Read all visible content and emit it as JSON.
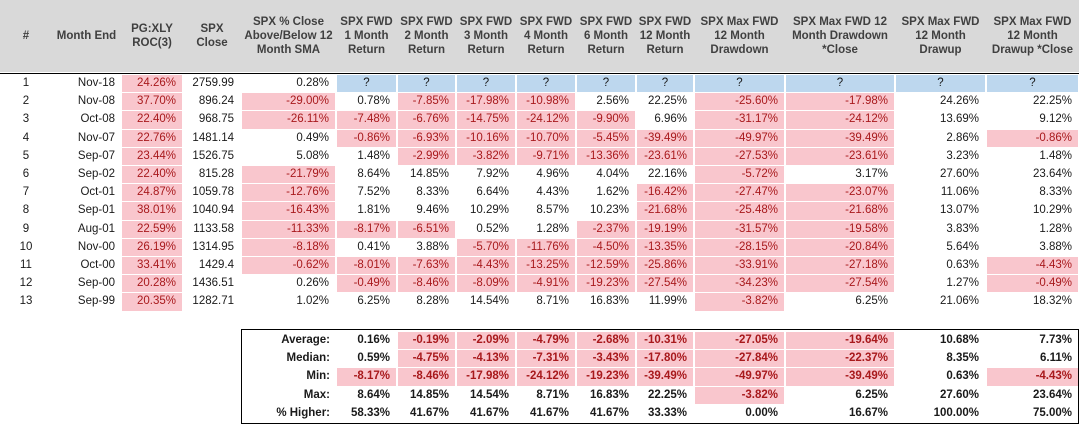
{
  "headers": [
    "#",
    "Month End",
    "PG:XLY ROC(3)",
    "SPX Close",
    "SPX % Close Above/Below 12 Month SMA",
    "SPX FWD 1 Month Return",
    "SPX FWD 2 Month Return",
    "SPX FWD 3 Month Return",
    "SPX FWD 4 Month Return",
    "SPX FWD 6 Month Return",
    "SPX FWD 12 Month Return",
    "SPX Max FWD 12 Month Drawdown",
    "SPX Max FWD 12 Month Drawdown *Close",
    "SPX Max FWD 12 Month Drawup",
    "SPX Max FWD 12 Month Drawup *Close"
  ],
  "rows": [
    [
      "1",
      "Nov-18",
      "24.26%",
      "2759.99",
      "0.28%",
      "?",
      "?",
      "?",
      "?",
      "?",
      "?",
      "?",
      "?",
      "?",
      "?"
    ],
    [
      "2",
      "Nov-08",
      "37.70%",
      "896.24",
      "-29.00%",
      "0.78%",
      "-7.85%",
      "-17.98%",
      "-10.98%",
      "2.56%",
      "22.25%",
      "-25.60%",
      "-17.98%",
      "24.26%",
      "22.25%"
    ],
    [
      "3",
      "Oct-08",
      "22.40%",
      "968.75",
      "-26.11%",
      "-7.48%",
      "-6.76%",
      "-14.75%",
      "-24.12%",
      "-9.90%",
      "6.96%",
      "-31.17%",
      "-24.12%",
      "13.69%",
      "9.12%"
    ],
    [
      "4",
      "Nov-07",
      "22.76%",
      "1481.14",
      "0.49%",
      "-0.86%",
      "-6.93%",
      "-10.16%",
      "-10.70%",
      "-5.45%",
      "-39.49%",
      "-49.97%",
      "-39.49%",
      "2.86%",
      "-0.86%"
    ],
    [
      "5",
      "Sep-07",
      "23.44%",
      "1526.75",
      "5.08%",
      "1.48%",
      "-2.99%",
      "-3.82%",
      "-9.71%",
      "-13.36%",
      "-23.61%",
      "-27.53%",
      "-23.61%",
      "3.23%",
      "1.48%"
    ],
    [
      "6",
      "Sep-02",
      "22.40%",
      "815.28",
      "-21.79%",
      "8.64%",
      "14.85%",
      "7.92%",
      "4.96%",
      "4.04%",
      "22.16%",
      "-5.72%",
      "3.17%",
      "27.60%",
      "23.64%"
    ],
    [
      "7",
      "Oct-01",
      "24.87%",
      "1059.78",
      "-12.76%",
      "7.52%",
      "8.33%",
      "6.64%",
      "4.43%",
      "1.62%",
      "-16.42%",
      "-27.47%",
      "-23.07%",
      "11.06%",
      "8.33%"
    ],
    [
      "8",
      "Sep-01",
      "38.01%",
      "1040.94",
      "-16.43%",
      "1.81%",
      "9.46%",
      "10.29%",
      "8.57%",
      "10.23%",
      "-21.68%",
      "-25.48%",
      "-21.68%",
      "13.07%",
      "10.29%"
    ],
    [
      "9",
      "Aug-01",
      "22.59%",
      "1133.58",
      "-11.33%",
      "-8.17%",
      "-6.51%",
      "0.52%",
      "1.28%",
      "-2.37%",
      "-19.19%",
      "-31.57%",
      "-19.58%",
      "3.83%",
      "1.28%"
    ],
    [
      "10",
      "Nov-00",
      "26.19%",
      "1314.95",
      "-8.18%",
      "0.41%",
      "3.88%",
      "-5.70%",
      "-11.76%",
      "-4.50%",
      "-13.35%",
      "-28.15%",
      "-20.84%",
      "5.64%",
      "3.88%"
    ],
    [
      "11",
      "Oct-00",
      "33.41%",
      "1429.4",
      "-0.62%",
      "-8.01%",
      "-7.63%",
      "-4.43%",
      "-13.25%",
      "-12.59%",
      "-25.86%",
      "-33.91%",
      "-27.18%",
      "0.63%",
      "-4.43%"
    ],
    [
      "12",
      "Sep-00",
      "20.28%",
      "1436.51",
      "0.26%",
      "-0.49%",
      "-8.46%",
      "-8.09%",
      "-4.91%",
      "-19.23%",
      "-27.54%",
      "-34.23%",
      "-27.54%",
      "1.27%",
      "-0.49%"
    ],
    [
      "13",
      "Sep-99",
      "20.35%",
      "1282.71",
      "1.02%",
      "6.25%",
      "8.28%",
      "14.54%",
      "8.71%",
      "16.83%",
      "11.99%",
      "-3.82%",
      "6.25%",
      "21.06%",
      "18.32%"
    ]
  ],
  "summary": [
    {
      "label": "Average:",
      "values": [
        "0.16%",
        "-0.19%",
        "-2.09%",
        "-4.79%",
        "-2.68%",
        "-10.31%",
        "-27.05%",
        "-19.64%",
        "10.68%",
        "7.73%"
      ]
    },
    {
      "label": "Median:",
      "values": [
        "0.59%",
        "-4.75%",
        "-4.13%",
        "-7.31%",
        "-3.43%",
        "-17.80%",
        "-27.84%",
        "-22.37%",
        "8.35%",
        "6.11%"
      ]
    },
    {
      "label": "Min:",
      "values": [
        "-8.17%",
        "-8.46%",
        "-17.98%",
        "-24.12%",
        "-19.23%",
        "-39.49%",
        "-49.97%",
        "-39.49%",
        "0.63%",
        "-4.43%"
      ]
    },
    {
      "label": "Max:",
      "values": [
        "8.64%",
        "14.85%",
        "14.54%",
        "8.71%",
        "16.83%",
        "22.25%",
        "-3.82%",
        "6.25%",
        "27.60%",
        "23.64%"
      ]
    },
    {
      "label": "% Higher:",
      "values": [
        "58.33%",
        "41.67%",
        "41.67%",
        "41.67%",
        "41.67%",
        "33.33%",
        "0.00%",
        "16.67%",
        "100.00%",
        "75.00%"
      ]
    }
  ],
  "colors": {
    "header_bg": "#d9d9d9",
    "negative_bg": "#f9c6cd",
    "negative_text": "#a8191c",
    "pending_bg": "#bdd7ee"
  }
}
